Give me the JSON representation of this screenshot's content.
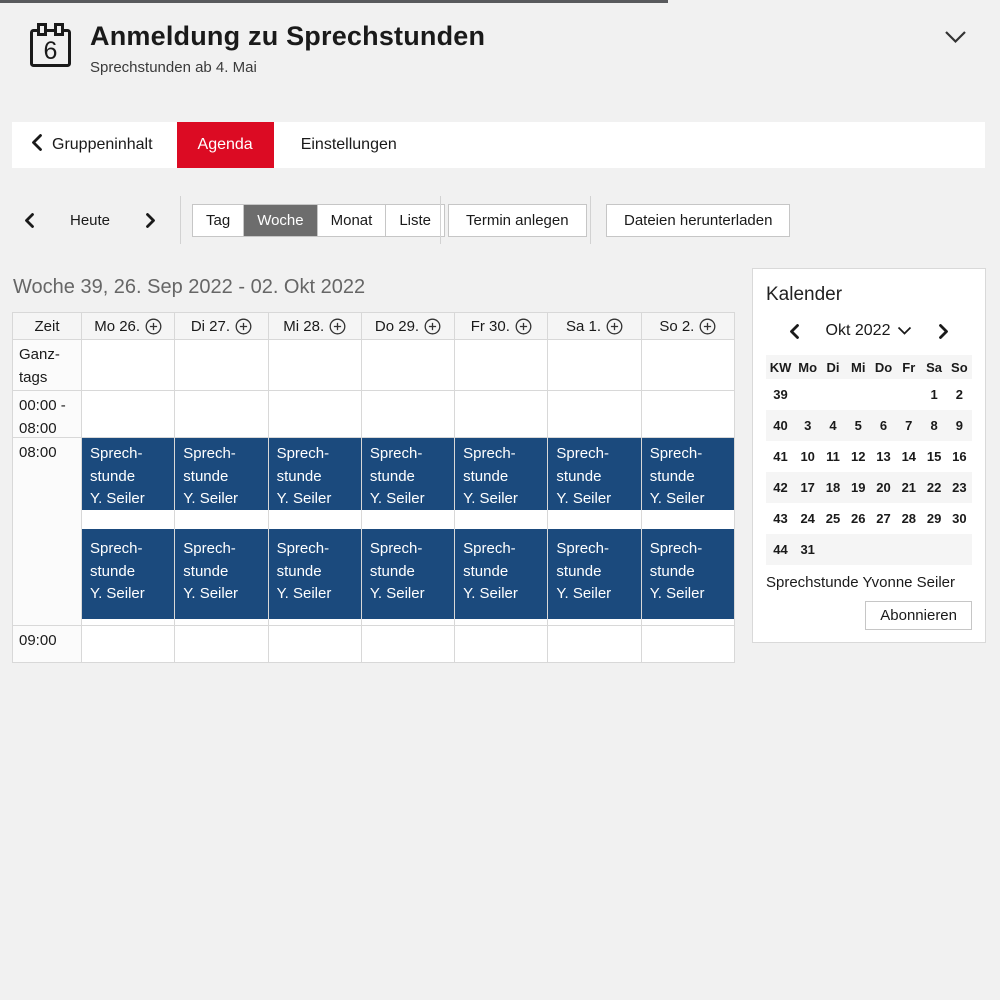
{
  "header": {
    "title": "Anmeldung zu Sprechstunden",
    "subtitle": "Sprechstunden ab 4. Mai",
    "icon_day": "6"
  },
  "tabs": {
    "back_label": "Gruppeninhalt",
    "items": [
      {
        "label": "Agenda",
        "active": true
      },
      {
        "label": "Einstellungen",
        "active": false
      }
    ]
  },
  "toolbar": {
    "today_label": "Heute",
    "views": [
      "Tag",
      "Woche",
      "Monat",
      "Liste"
    ],
    "active_view": "Woche",
    "create_event_label": "Termin anlegen",
    "download_files_label": "Dateien herunterladen"
  },
  "agenda": {
    "week_heading": "Woche 39, 26. Sep 2022 - 02. Okt 2022",
    "time_column_header": "Zeit",
    "time_rows": [
      {
        "label": "Ganz-tags",
        "key": "allday",
        "events_row": false
      },
      {
        "label": "00:00 - 08:00",
        "key": "early",
        "events_row": false
      },
      {
        "label": "08:00",
        "key": "main",
        "events_row": true
      },
      {
        "label": "09:00",
        "key": "late",
        "events_row": false
      }
    ],
    "days": [
      {
        "header": "Mo 26.",
        "events": [
          {
            "lines": [
              "Sprech-",
              "stunde",
              "Y. Seiler"
            ]
          },
          {
            "lines": [
              "Sprech-",
              "stunde",
              "Y. Seiler"
            ]
          }
        ]
      },
      {
        "header": "Di 27.",
        "events": [
          {
            "lines": [
              "Sprech-",
              "stunde",
              "Y. Seiler"
            ]
          },
          {
            "lines": [
              "Sprech-",
              "stunde",
              "Y. Seiler"
            ]
          }
        ]
      },
      {
        "header": "Mi 28.",
        "events": [
          {
            "lines": [
              "Sprech-",
              "stunde",
              "Y. Seiler"
            ]
          },
          {
            "lines": [
              "Sprech-",
              "stunde",
              "Y. Seiler"
            ]
          }
        ]
      },
      {
        "header": "Do 29.",
        "events": [
          {
            "lines": [
              "Sprech-",
              "stunde",
              "Y. Seiler"
            ]
          },
          {
            "lines": [
              "Sprech-",
              "stunde",
              "Y. Seiler"
            ]
          }
        ]
      },
      {
        "header": "Fr 30.",
        "events": [
          {
            "lines": [
              "Sprech-",
              "stunde",
              "Y. Seiler"
            ]
          },
          {
            "lines": [
              "Sprech-",
              "stunde",
              "Y. Seiler"
            ]
          }
        ]
      },
      {
        "header": "Sa 1.",
        "events": [
          {
            "lines": [
              "Sprech-",
              "stunde",
              "Y. Seiler"
            ]
          },
          {
            "lines": [
              "Sprech-",
              "stunde",
              "Y. Seiler"
            ]
          }
        ]
      },
      {
        "header": "So 2.",
        "events": [
          {
            "lines": [
              "Sprech-",
              "stunde",
              "Y. Seiler"
            ]
          },
          {
            "lines": [
              "Sprech-",
              "stunde",
              "Y. Seiler"
            ]
          }
        ]
      }
    ]
  },
  "sidebar": {
    "title": "Kalender",
    "month_label": "Okt 2022",
    "weekday_headers": [
      "KW",
      "Mo",
      "Di",
      "Mi",
      "Do",
      "Fr",
      "Sa",
      "So"
    ],
    "weeks": [
      {
        "kw": "39",
        "days": [
          "",
          "",
          "",
          "",
          "",
          "1",
          "2"
        ]
      },
      {
        "kw": "40",
        "days": [
          "3",
          "4",
          "5",
          "6",
          "7",
          "8",
          "9"
        ]
      },
      {
        "kw": "41",
        "days": [
          "10",
          "11",
          "12",
          "13",
          "14",
          "15",
          "16"
        ]
      },
      {
        "kw": "42",
        "days": [
          "17",
          "18",
          "19",
          "20",
          "21",
          "22",
          "23"
        ]
      },
      {
        "kw": "43",
        "days": [
          "24",
          "25",
          "26",
          "27",
          "28",
          "29",
          "30"
        ]
      },
      {
        "kw": "44",
        "days": [
          "31",
          "",
          "",
          "",
          "",
          "",
          ""
        ]
      }
    ],
    "footer_label": "Sprechstunde Yvonne Seiler",
    "subscribe_button_label": "Abonnieren"
  },
  "colors": {
    "accent_red": "#dc0b23",
    "event_blue": "#1b4a7d",
    "selected_gray": "#6d6d6d"
  }
}
